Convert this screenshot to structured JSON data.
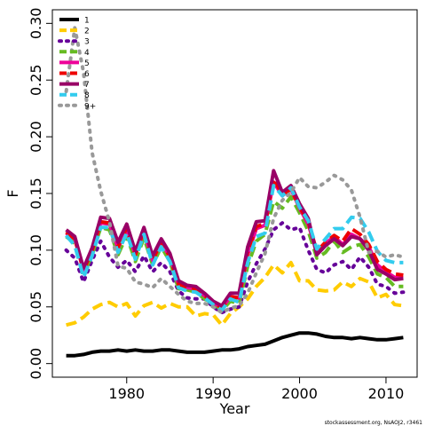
{
  "chart_data": {
    "type": "line",
    "xlabel": "Year",
    "ylabel": "F",
    "xlim": [
      1971.4,
      2013.6
    ],
    "ylim": [
      -0.012,
      0.312
    ],
    "xticks": [
      1980,
      1990,
      2000,
      2010
    ],
    "yticks": [
      0.0,
      0.05,
      0.1,
      0.15,
      0.2,
      0.25,
      0.3
    ],
    "ytick_labels": [
      "0.00",
      "0.05",
      "0.10",
      "0.15",
      "0.20",
      "0.25",
      "0.30"
    ],
    "legend_position": "top-left",
    "credit": "stockassessment.org, NsAOJ2, r3461",
    "x": [
      1973,
      1974,
      1975,
      1976,
      1977,
      1978,
      1979,
      1980,
      1981,
      1982,
      1983,
      1984,
      1985,
      1986,
      1987,
      1988,
      1989,
      1990,
      1991,
      1992,
      1993,
      1994,
      1995,
      1996,
      1997,
      1998,
      1999,
      2000,
      2001,
      2002,
      2003,
      2004,
      2005,
      2006,
      2007,
      2008,
      2009,
      2010,
      2011,
      2012
    ],
    "series": [
      {
        "name": "1",
        "color": "#000000",
        "dash": "solid",
        "width": 4,
        "values": [
          0.007,
          0.007,
          0.008,
          0.01,
          0.011,
          0.011,
          0.012,
          0.011,
          0.012,
          0.011,
          0.011,
          0.012,
          0.012,
          0.011,
          0.01,
          0.01,
          0.01,
          0.011,
          0.012,
          0.012,
          0.013,
          0.015,
          0.016,
          0.017,
          0.02,
          0.023,
          0.025,
          0.027,
          0.027,
          0.026,
          0.024,
          0.023,
          0.023,
          0.022,
          0.023,
          0.022,
          0.021,
          0.021,
          0.022,
          0.023
        ]
      },
      {
        "name": "2",
        "color": "#ffcc00",
        "dash": "dash",
        "width": 4,
        "values": [
          0.034,
          0.036,
          0.041,
          0.048,
          0.052,
          0.054,
          0.05,
          0.053,
          0.042,
          0.051,
          0.054,
          0.049,
          0.053,
          0.05,
          0.05,
          0.042,
          0.044,
          0.043,
          0.034,
          0.044,
          0.05,
          0.057,
          0.068,
          0.076,
          0.087,
          0.08,
          0.089,
          0.073,
          0.073,
          0.065,
          0.064,
          0.065,
          0.072,
          0.068,
          0.075,
          0.072,
          0.058,
          0.061,
          0.052,
          0.051
        ]
      },
      {
        "name": "3",
        "color": "#660099",
        "dash": "dot",
        "width": 4,
        "values": [
          0.1,
          0.093,
          0.072,
          0.091,
          0.108,
          0.094,
          0.085,
          0.091,
          0.081,
          0.095,
          0.081,
          0.089,
          0.081,
          0.064,
          0.058,
          0.057,
          0.057,
          0.05,
          0.045,
          0.048,
          0.05,
          0.072,
          0.088,
          0.101,
          0.118,
          0.124,
          0.118,
          0.12,
          0.1,
          0.083,
          0.08,
          0.087,
          0.09,
          0.083,
          0.094,
          0.085,
          0.07,
          0.068,
          0.062,
          0.063
        ]
      },
      {
        "name": "4",
        "color": "#66bb22",
        "dash": "dash",
        "width": 4,
        "values": [
          0.112,
          0.106,
          0.079,
          0.096,
          0.12,
          0.118,
          0.096,
          0.113,
          0.09,
          0.111,
          0.087,
          0.103,
          0.09,
          0.066,
          0.065,
          0.063,
          0.057,
          0.053,
          0.047,
          0.055,
          0.053,
          0.086,
          0.108,
          0.114,
          0.143,
          0.137,
          0.147,
          0.133,
          0.117,
          0.093,
          0.098,
          0.108,
          0.098,
          0.103,
          0.105,
          0.094,
          0.079,
          0.076,
          0.068,
          0.068
        ]
      },
      {
        "name": "5",
        "color": "#ee0099",
        "dash": "solid",
        "width": 4,
        "values": [
          0.115,
          0.11,
          0.082,
          0.1,
          0.124,
          0.123,
          0.102,
          0.118,
          0.096,
          0.117,
          0.091,
          0.107,
          0.094,
          0.07,
          0.067,
          0.066,
          0.06,
          0.054,
          0.049,
          0.059,
          0.058,
          0.096,
          0.119,
          0.122,
          0.16,
          0.148,
          0.154,
          0.137,
          0.123,
          0.098,
          0.106,
          0.112,
          0.105,
          0.114,
          0.11,
          0.103,
          0.087,
          0.081,
          0.076,
          0.076
        ]
      },
      {
        "name": "6",
        "color": "#ee0000",
        "dash": "dash",
        "width": 4,
        "values": [
          0.116,
          0.11,
          0.082,
          0.1,
          0.125,
          0.124,
          0.103,
          0.12,
          0.096,
          0.118,
          0.091,
          0.108,
          0.094,
          0.07,
          0.067,
          0.066,
          0.06,
          0.054,
          0.049,
          0.059,
          0.058,
          0.099,
          0.121,
          0.123,
          0.163,
          0.149,
          0.154,
          0.138,
          0.125,
          0.099,
          0.107,
          0.113,
          0.108,
          0.119,
          0.114,
          0.105,
          0.09,
          0.083,
          0.079,
          0.078
        ]
      },
      {
        "name": "7",
        "color": "#990066",
        "dash": "solid",
        "width": 4,
        "values": [
          0.118,
          0.112,
          0.084,
          0.102,
          0.129,
          0.128,
          0.107,
          0.123,
          0.099,
          0.12,
          0.095,
          0.11,
          0.097,
          0.073,
          0.069,
          0.068,
          0.062,
          0.055,
          0.051,
          0.062,
          0.062,
          0.103,
          0.125,
          0.126,
          0.17,
          0.151,
          0.157,
          0.141,
          0.128,
          0.096,
          0.104,
          0.11,
          0.104,
          0.112,
          0.11,
          0.1,
          0.083,
          0.079,
          0.074,
          0.075
        ]
      },
      {
        "name": "8",
        "color": "#33ccee",
        "dash": "dash",
        "width": 4,
        "values": [
          0.113,
          0.104,
          0.076,
          0.095,
          0.12,
          0.12,
          0.098,
          0.115,
          0.092,
          0.114,
          0.087,
          0.103,
          0.09,
          0.067,
          0.064,
          0.063,
          0.058,
          0.052,
          0.047,
          0.057,
          0.054,
          0.089,
          0.112,
          0.115,
          0.157,
          0.148,
          0.155,
          0.138,
          0.126,
          0.101,
          0.11,
          0.119,
          0.119,
          0.129,
          0.128,
          0.116,
          0.099,
          0.091,
          0.089,
          0.089
        ]
      },
      {
        "name": "9+",
        "color": "#999999",
        "dash": "dot",
        "width": 4,
        "values": [
          0.24,
          0.296,
          0.257,
          0.186,
          0.152,
          0.125,
          0.086,
          0.084,
          0.072,
          0.07,
          0.067,
          0.075,
          0.068,
          0.061,
          0.055,
          0.053,
          0.053,
          0.05,
          0.045,
          0.049,
          0.051,
          0.062,
          0.08,
          0.097,
          0.128,
          0.144,
          0.151,
          0.164,
          0.156,
          0.155,
          0.16,
          0.166,
          0.162,
          0.153,
          0.129,
          0.098,
          0.099,
          0.094,
          0.096,
          0.094
        ]
      }
    ]
  }
}
